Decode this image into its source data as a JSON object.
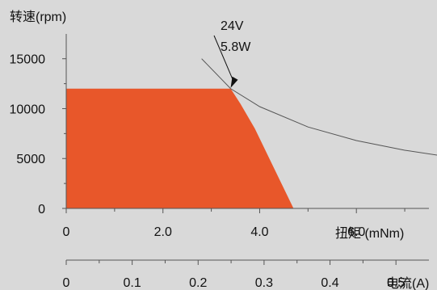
{
  "chart_data": {
    "type": "area",
    "ylabel": "转速(rpm)",
    "xlabel": "扭矩 (mNm)",
    "x2label": "电流(A)",
    "annotation": {
      "line1": "24V",
      "line2": "5.8W",
      "point": [
        3.4,
        12000
      ]
    },
    "y_ticks": [
      0,
      5000,
      10000,
      15000
    ],
    "y_tick_labels": [
      "0",
      "5000",
      "10000",
      "15000"
    ],
    "ylim": [
      0,
      17000
    ],
    "x_ticks": [
      0,
      2.0,
      4.0,
      6.0
    ],
    "x_tick_labels": [
      "0",
      "2.0",
      "4.0",
      "6.0"
    ],
    "x_minor_ticks": [
      1,
      3,
      5,
      7
    ],
    "xlim": [
      0,
      7.5
    ],
    "x2_ticks": [
      0,
      0.1,
      0.2,
      0.3,
      0.4,
      0.5
    ],
    "x2_tick_labels": [
      "0",
      "0.1",
      "0.2",
      "0.3",
      "0.4",
      "0.5"
    ],
    "x2_minor_ticks": [
      0.05,
      0.15,
      0.25,
      0.35,
      0.45
    ],
    "x2lim": [
      0,
      0.55
    ],
    "operating_region": {
      "color": "#e8572a",
      "points": [
        [
          0,
          0
        ],
        [
          0,
          12000
        ],
        [
          3.4,
          12000
        ],
        [
          3.6,
          10500
        ],
        [
          3.9,
          8000
        ],
        [
          4.2,
          5000
        ],
        [
          4.45,
          2500
        ],
        [
          4.7,
          0
        ]
      ]
    },
    "power_curve": {
      "color": "#555555",
      "points": [
        [
          2.8,
          15000
        ],
        [
          3.4,
          12000
        ],
        [
          4.0,
          10200
        ],
        [
          5.0,
          8160
        ],
        [
          6.0,
          6800
        ],
        [
          7.0,
          5830
        ],
        [
          8.0,
          5100
        ],
        [
          9.0,
          4530
        ],
        [
          10.0,
          4080
        ],
        [
          11.0,
          3700
        ],
        [
          12.0,
          3280
        ]
      ]
    },
    "grid": false
  },
  "colors": {
    "background": "#d9d9d9",
    "axis": "#555555",
    "fill": "#e8572a"
  }
}
